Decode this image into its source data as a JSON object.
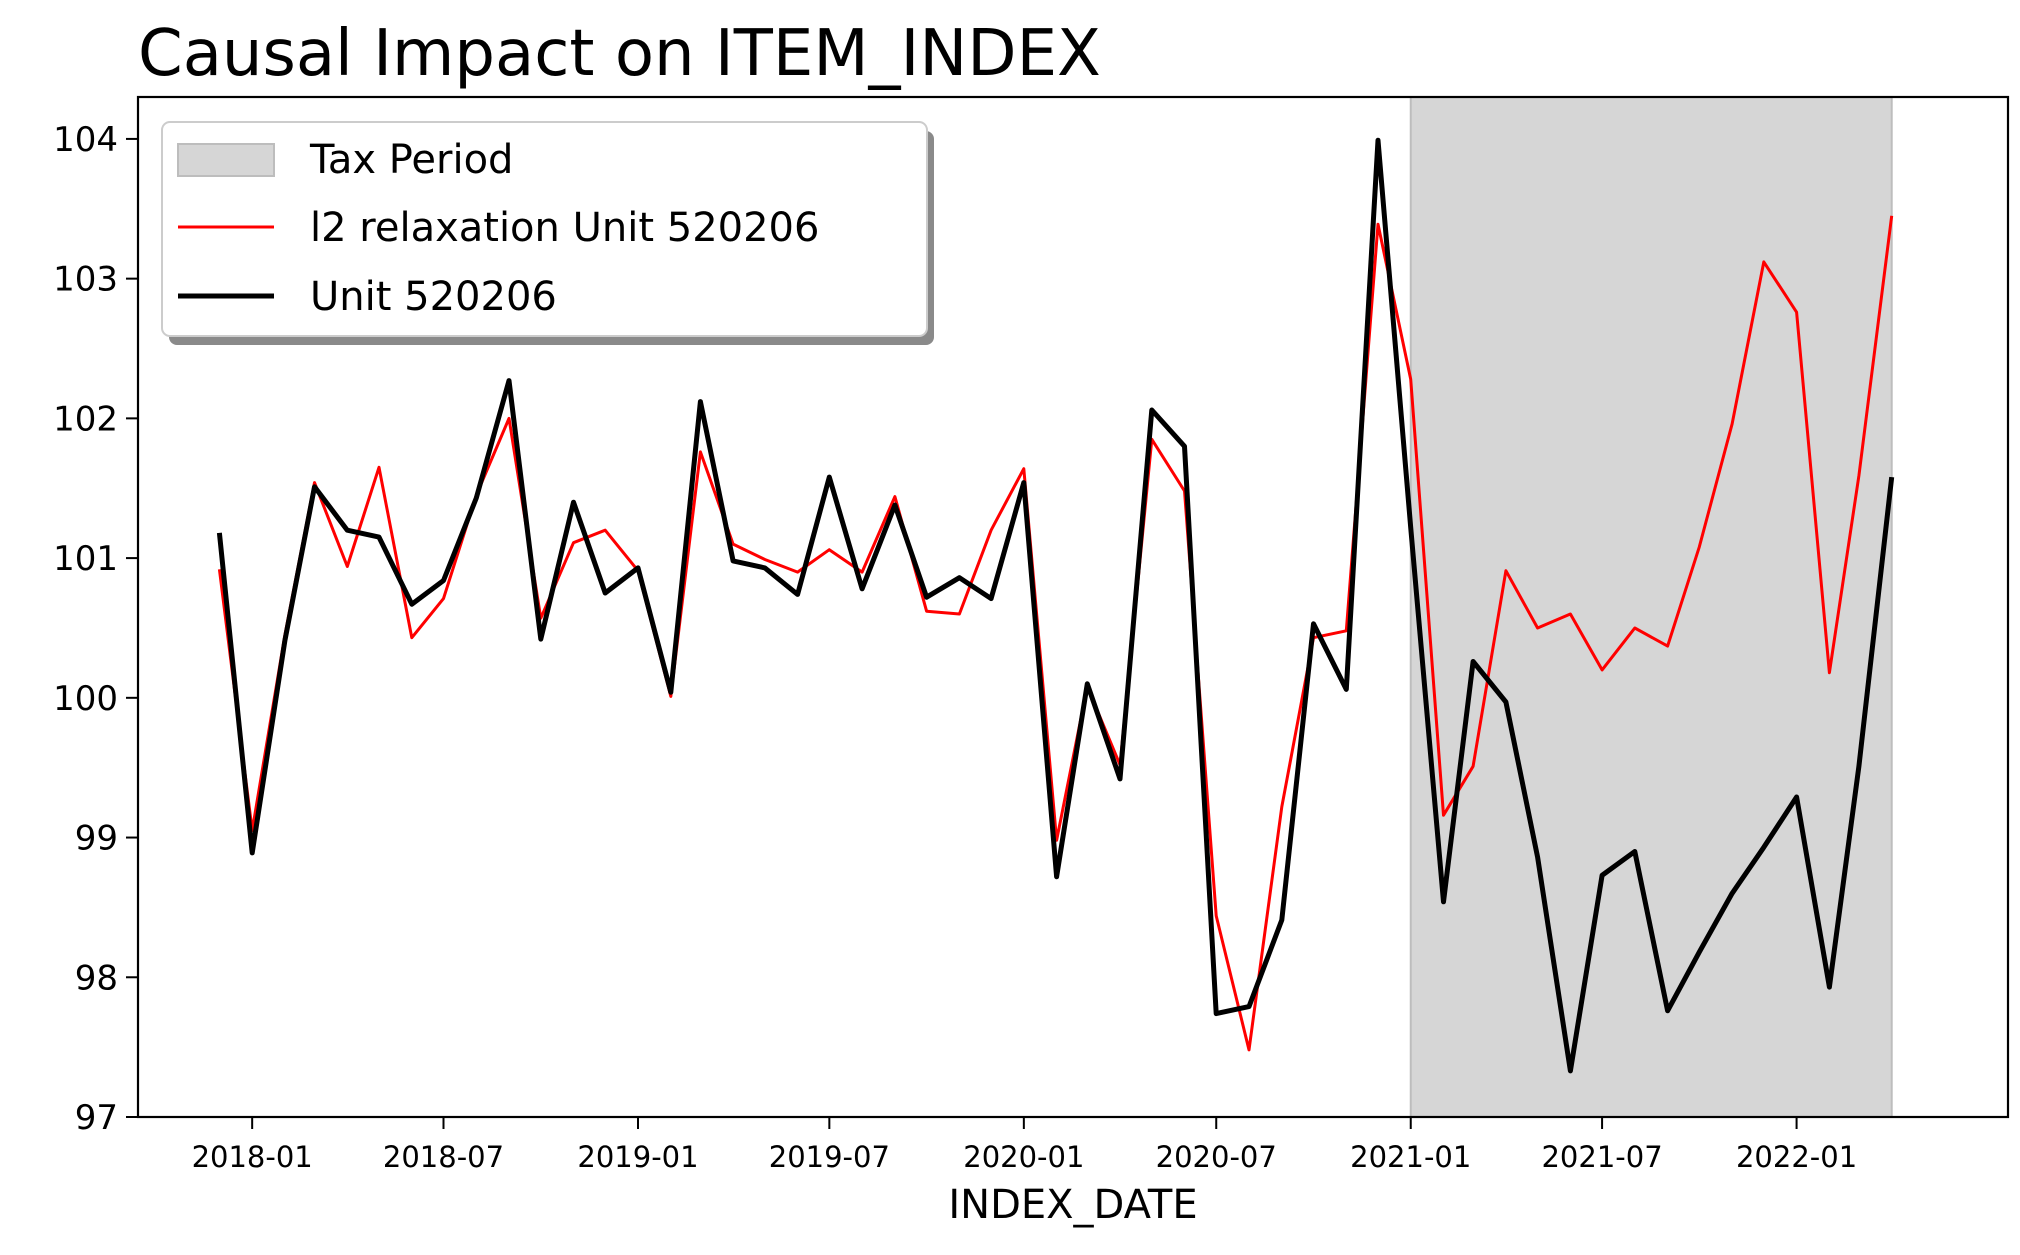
{
  "chart_data": {
    "type": "line",
    "title": "Causal Impact on ITEM_INDEX",
    "xlabel": "INDEX_DATE",
    "ylabel": "",
    "ylim": [
      97,
      104.3
    ],
    "yticks": [
      97,
      98,
      99,
      100,
      101,
      102,
      103,
      104
    ],
    "xlim": [
      "2017-09-15",
      "2022-07-20"
    ],
    "xticks": [
      "2018-01",
      "2018-07",
      "2019-01",
      "2019-07",
      "2020-01",
      "2020-07",
      "2021-01",
      "2021-07",
      "2022-01"
    ],
    "grid": false,
    "legend_position": "top-left",
    "shaded_region": {
      "label": "Tax Period",
      "start": "2021-01-01",
      "end": "2022-04-01",
      "color": "#d6d6d6"
    },
    "x": [
      "2017-12-01",
      "2018-01-01",
      "2018-02-01",
      "2018-03-01",
      "2018-04-01",
      "2018-05-01",
      "2018-06-01",
      "2018-07-01",
      "2018-08-01",
      "2018-09-01",
      "2018-10-01",
      "2018-11-01",
      "2018-12-01",
      "2019-01-01",
      "2019-02-01",
      "2019-03-01",
      "2019-04-01",
      "2019-05-01",
      "2019-06-01",
      "2019-07-01",
      "2019-08-01",
      "2019-09-01",
      "2019-10-01",
      "2019-11-01",
      "2019-12-01",
      "2020-01-01",
      "2020-02-01",
      "2020-03-01",
      "2020-04-01",
      "2020-05-01",
      "2020-06-01",
      "2020-07-01",
      "2020-08-01",
      "2020-09-01",
      "2020-10-01",
      "2020-11-01",
      "2020-12-01",
      "2021-01-01",
      "2021-02-01",
      "2021-03-01",
      "2021-04-01",
      "2021-05-01",
      "2021-06-01",
      "2021-07-01",
      "2021-08-01",
      "2021-09-01",
      "2021-10-01",
      "2021-11-01",
      "2021-12-01",
      "2022-01-01",
      "2022-02-01",
      "2022-03-01",
      "2022-04-01"
    ],
    "series": [
      {
        "name": "l2 relaxation Unit 520206",
        "color": "#ff0000",
        "values": [
          100.92,
          99.05,
          100.45,
          101.54,
          100.94,
          101.65,
          100.43,
          100.71,
          101.45,
          102.0,
          100.57,
          101.11,
          101.2,
          100.91,
          100.01,
          101.76,
          101.1,
          100.99,
          100.9,
          101.06,
          100.9,
          101.44,
          100.62,
          100.6,
          101.2,
          101.64,
          98.98,
          100.08,
          99.52,
          101.85,
          101.48,
          98.44,
          97.48,
          99.22,
          100.43,
          100.48,
          103.39,
          102.28,
          99.16,
          99.51,
          100.91,
          100.5,
          100.6,
          100.2,
          100.5,
          100.37,
          101.08,
          101.96,
          103.12,
          102.76,
          100.18,
          101.59,
          103.45
        ]
      },
      {
        "name": "Unit 520206",
        "color": "#000000",
        "values": [
          101.18,
          98.89,
          100.41,
          101.51,
          101.2,
          101.15,
          100.67,
          100.84,
          101.43,
          102.27,
          100.42,
          101.4,
          100.75,
          100.93,
          100.04,
          102.12,
          100.98,
          100.93,
          100.74,
          101.58,
          100.78,
          101.38,
          100.72,
          100.86,
          100.71,
          101.54,
          98.72,
          100.1,
          99.42,
          102.06,
          101.8,
          97.74,
          97.79,
          98.41,
          100.53,
          100.06,
          103.99,
          101.22,
          98.54,
          100.26,
          99.97,
          98.86,
          97.33,
          98.73,
          98.9,
          97.76,
          98.18,
          98.6,
          98.93,
          99.29,
          97.93,
          99.51,
          101.58
        ]
      }
    ],
    "legend": [
      {
        "label": "Tax Period",
        "kind": "patch"
      },
      {
        "label": "l2 relaxation Unit 520206",
        "kind": "line"
      },
      {
        "label": "Unit 520206",
        "kind": "line"
      }
    ]
  }
}
